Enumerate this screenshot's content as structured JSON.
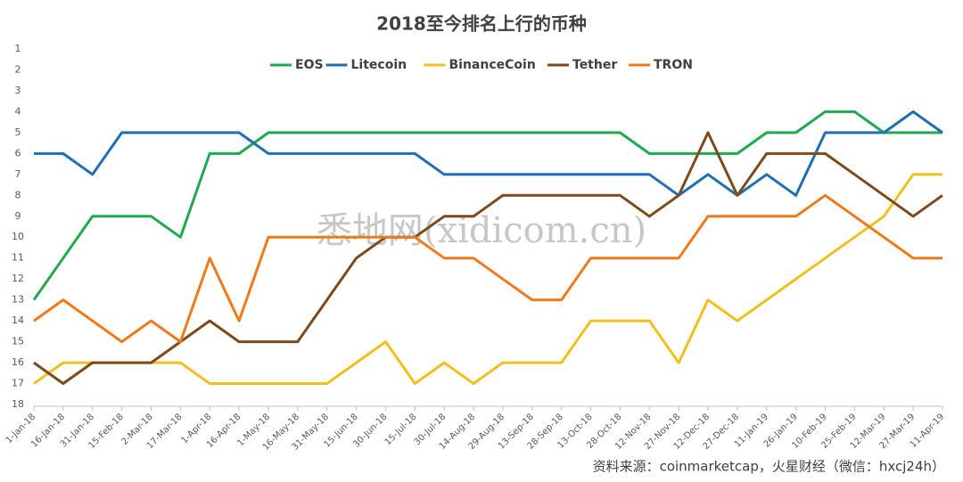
{
  "chart_data": {
    "type": "line",
    "title": "2018至今排名上行的币种",
    "categories": [
      "1-Jan-18",
      "16-Jan-18",
      "31-Jan-18",
      "15-Feb-18",
      "2-Mar-18",
      "17-Mar-18",
      "1-Apr-18",
      "16-Apr-18",
      "1-May-18",
      "16-May-18",
      "31-May-18",
      "15-Jun-18",
      "30-Jun-18",
      "15-Jul-18",
      "30-Jul-18",
      "14-Aug-18",
      "29-Aug-18",
      "13-Sep-18",
      "28-Sep-18",
      "13-Oct-18",
      "28-Oct-18",
      "12-Nov-18",
      "27-Nov-18",
      "12-Dec-18",
      "27-Dec-18",
      "11-Jan-19",
      "26-Jan-19",
      "10-Feb-19",
      "25-Feb-19",
      "12-Mar-19",
      "27-Mar-19",
      "11-Apr-19"
    ],
    "series": [
      {
        "name": "EOS",
        "color": "#1faa4f",
        "values": [
          13,
          11,
          9,
          9,
          9,
          10,
          6,
          6,
          5,
          5,
          5,
          5,
          5,
          5,
          5,
          5,
          5,
          5,
          5,
          5,
          5,
          6,
          6,
          6,
          6,
          5,
          5,
          4,
          4,
          5,
          5,
          5
        ]
      },
      {
        "name": "Litecoin",
        "color": "#1f6fb5",
        "values": [
          6,
          6,
          7,
          5,
          5,
          5,
          5,
          5,
          6,
          6,
          6,
          6,
          6,
          6,
          7,
          7,
          7,
          7,
          7,
          7,
          7,
          7,
          8,
          7,
          8,
          7,
          8,
          5,
          5,
          5,
          4,
          5
        ]
      },
      {
        "name": "BinanceCoin",
        "color": "#f2c01e",
        "values": [
          17,
          16,
          16,
          16,
          16,
          16,
          17,
          17,
          17,
          17,
          17,
          16,
          15,
          17,
          16,
          17,
          16,
          16,
          16,
          14,
          14,
          14,
          16,
          13,
          14,
          13,
          12,
          11,
          10,
          9,
          7,
          7
        ]
      },
      {
        "name": "Tether",
        "color": "#7f4a1a",
        "values": [
          16,
          17,
          16,
          16,
          16,
          15,
          14,
          15,
          15,
          15,
          13,
          11,
          10,
          10,
          9,
          9,
          8,
          8,
          8,
          8,
          8,
          9,
          8,
          5,
          8,
          6,
          6,
          6,
          7,
          8,
          9,
          8
        ]
      },
      {
        "name": "TRON",
        "color": "#f07a1a",
        "values": [
          14,
          13,
          14,
          15,
          14,
          15,
          11,
          14,
          10,
          10,
          10,
          10,
          10,
          10,
          11,
          11,
          12,
          13,
          13,
          11,
          11,
          11,
          11,
          9,
          9,
          9,
          9,
          8,
          9,
          10,
          11,
          11
        ]
      }
    ],
    "ylim": [
      1,
      18
    ],
    "yticks": [
      1,
      2,
      3,
      4,
      5,
      6,
      7,
      8,
      9,
      10,
      11,
      12,
      13,
      14,
      15,
      16,
      17,
      18
    ],
    "y_reversed": true,
    "grid": false,
    "legend": "top",
    "watermark": "悉地网(xidicom.cn)",
    "source": "资料来源：coinmarketcap，火星财经（微信：hxcj24h）"
  }
}
